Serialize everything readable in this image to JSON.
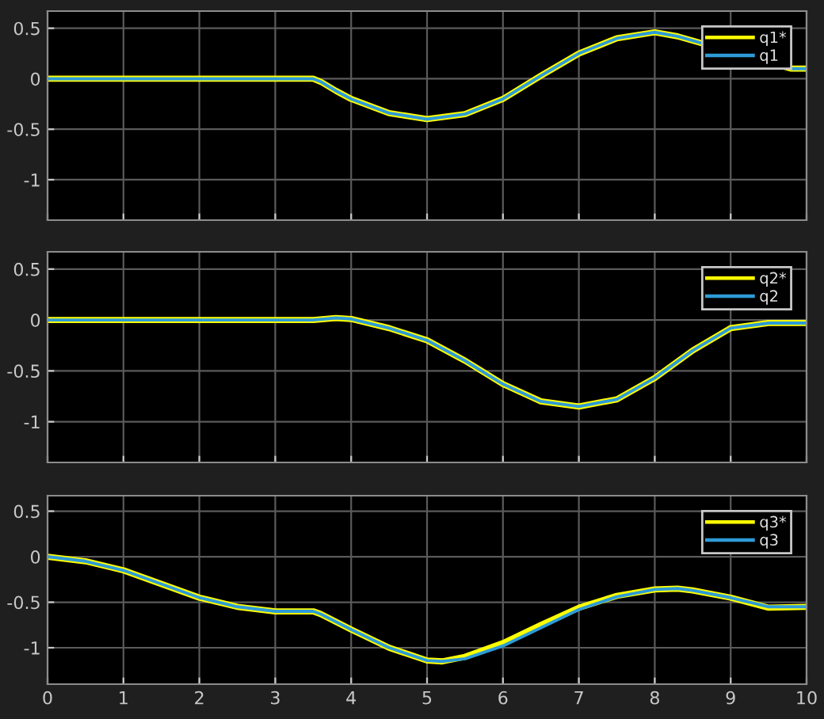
{
  "chart_data": [
    {
      "type": "line",
      "xlim": [
        0,
        10
      ],
      "ylim": [
        -1.4,
        0.67
      ],
      "xticks": [
        0,
        1,
        2,
        3,
        4,
        5,
        6,
        7,
        8,
        9,
        10
      ],
      "yticks": [
        -1,
        -0.5,
        0,
        0.5
      ],
      "grid": true,
      "legend": "top right",
      "tick_labels": "y",
      "x": [
        0,
        1,
        2,
        3,
        3.5,
        3.6,
        3.8,
        4,
        4.5,
        5,
        5.5,
        6,
        6.5,
        7,
        7.5,
        8,
        8.3,
        9.8,
        10
      ],
      "series": [
        {
          "name": "q1*",
          "color": "#ffff00",
          "values": [
            0,
            0,
            0,
            0,
            0,
            -0.03,
            -0.12,
            -0.2,
            -0.34,
            -0.4,
            -0.35,
            -0.2,
            0.03,
            0.25,
            0.4,
            0.46,
            0.42,
            0.1,
            0.1
          ]
        },
        {
          "name": "q1",
          "color": "#2e9bd6",
          "values": [
            0,
            0,
            0,
            0,
            0,
            -0.03,
            -0.12,
            -0.2,
            -0.34,
            -0.4,
            -0.35,
            -0.2,
            0.03,
            0.25,
            0.4,
            0.46,
            0.42,
            0.1,
            0.1
          ]
        }
      ]
    },
    {
      "type": "line",
      "xlim": [
        0,
        10
      ],
      "ylim": [
        -1.4,
        0.67
      ],
      "xticks": [
        0,
        1,
        2,
        3,
        4,
        5,
        6,
        7,
        8,
        9,
        10
      ],
      "yticks": [
        -1,
        -0.5,
        0,
        0.5
      ],
      "grid": true,
      "legend": "top right",
      "tick_labels": "y",
      "x": [
        0,
        1,
        2,
        3,
        3.5,
        3.8,
        4,
        4.5,
        5,
        5.5,
        6,
        6.5,
        7,
        7.5,
        8,
        8.5,
        9,
        9.5,
        10
      ],
      "series": [
        {
          "name": "q2*",
          "color": "#ffff00",
          "values": [
            0,
            0,
            0,
            0,
            0,
            0.02,
            0.01,
            -0.08,
            -0.2,
            -0.4,
            -0.63,
            -0.8,
            -0.85,
            -0.78,
            -0.57,
            -0.3,
            -0.08,
            -0.03,
            -0.03
          ]
        },
        {
          "name": "q2",
          "color": "#2e9bd6",
          "values": [
            0,
            0,
            0,
            0,
            0,
            0.02,
            0.01,
            -0.08,
            -0.2,
            -0.4,
            -0.63,
            -0.8,
            -0.85,
            -0.78,
            -0.57,
            -0.3,
            -0.08,
            -0.03,
            -0.03
          ]
        }
      ]
    },
    {
      "type": "line",
      "xlim": [
        0,
        10
      ],
      "ylim": [
        -1.4,
        0.67
      ],
      "xticks": [
        0,
        1,
        2,
        3,
        4,
        5,
        6,
        7,
        8,
        9,
        10
      ],
      "yticks": [
        -1,
        -0.5,
        0,
        0.5
      ],
      "grid": true,
      "legend": "top right",
      "x": [
        0,
        0.5,
        1,
        1.5,
        2,
        2.5,
        3,
        3.5,
        3.6,
        4,
        4.5,
        5,
        5.2,
        5.5,
        6,
        6.5,
        7,
        7.5,
        8,
        8.3,
        8.5,
        9,
        9.5,
        10
      ],
      "series": [
        {
          "name": "q3*",
          "color": "#ffff00",
          "values": [
            0,
            -0.05,
            -0.15,
            -0.3,
            -0.45,
            -0.55,
            -0.6,
            -0.6,
            -0.63,
            -0.8,
            -1.0,
            -1.14,
            -1.15,
            -1.1,
            -0.95,
            -0.75,
            -0.56,
            -0.43,
            -0.36,
            -0.35,
            -0.37,
            -0.45,
            -0.56,
            -0.55
          ]
        },
        {
          "name": "q3",
          "color": "#2e9bd6",
          "values": [
            0,
            -0.05,
            -0.15,
            -0.3,
            -0.45,
            -0.55,
            -0.6,
            -0.6,
            -0.63,
            -0.8,
            -1.0,
            -1.14,
            -1.15,
            -1.12,
            -0.98,
            -0.78,
            -0.58,
            -0.44,
            -0.36,
            -0.35,
            -0.37,
            -0.45,
            -0.55,
            -0.55
          ]
        }
      ]
    }
  ]
}
